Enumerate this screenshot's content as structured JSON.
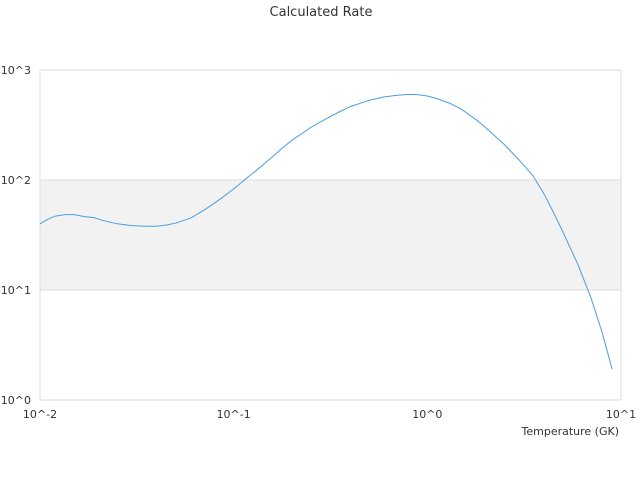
{
  "chart_data": {
    "type": "line",
    "title": "Calculated Rate",
    "xlabel": "Temperature (GK)",
    "ylabel": "",
    "x_scale": "log",
    "y_scale": "log",
    "xlim": [
      0.01,
      10
    ],
    "ylim": [
      1,
      1000
    ],
    "x_ticks": [
      "10^-2",
      "10^-1",
      "10^0",
      "10^1"
    ],
    "y_ticks": [
      "10^0",
      "10^1",
      "10^2",
      "10^3"
    ],
    "grid": true,
    "band_color": "#f2f2f2",
    "series": [
      {
        "color": "#4a9de0",
        "x": [
          0.01,
          0.011,
          0.012,
          0.0135,
          0.015,
          0.017,
          0.019,
          0.021,
          0.025,
          0.03,
          0.035,
          0.04,
          0.045,
          0.05,
          0.06,
          0.07,
          0.08,
          0.09,
          0.1,
          0.12,
          0.14,
          0.16,
          0.18,
          0.2,
          0.25,
          0.3,
          0.35,
          0.4,
          0.5,
          0.6,
          0.7,
          0.8,
          0.9,
          1.0,
          1.1,
          1.3,
          1.5,
          1.8,
          2.0,
          2.5,
          3.0,
          3.5,
          4.0,
          4.5,
          5.0,
          6.0,
          7.0,
          8.0,
          9.0
        ],
        "y": [
          40,
          44,
          47,
          48.5,
          48.5,
          46.5,
          45.5,
          43,
          40,
          38.5,
          38,
          38,
          39,
          40.5,
          45,
          53,
          62,
          72,
          83,
          108,
          135,
          165,
          198,
          230,
          300,
          360,
          415,
          465,
          530,
          570,
          590,
          600,
          595,
          580,
          555,
          500,
          440,
          350,
          300,
          210,
          150,
          110,
          75,
          50,
          34,
          17,
          8.5,
          4.1,
          1.9
        ]
      }
    ]
  }
}
